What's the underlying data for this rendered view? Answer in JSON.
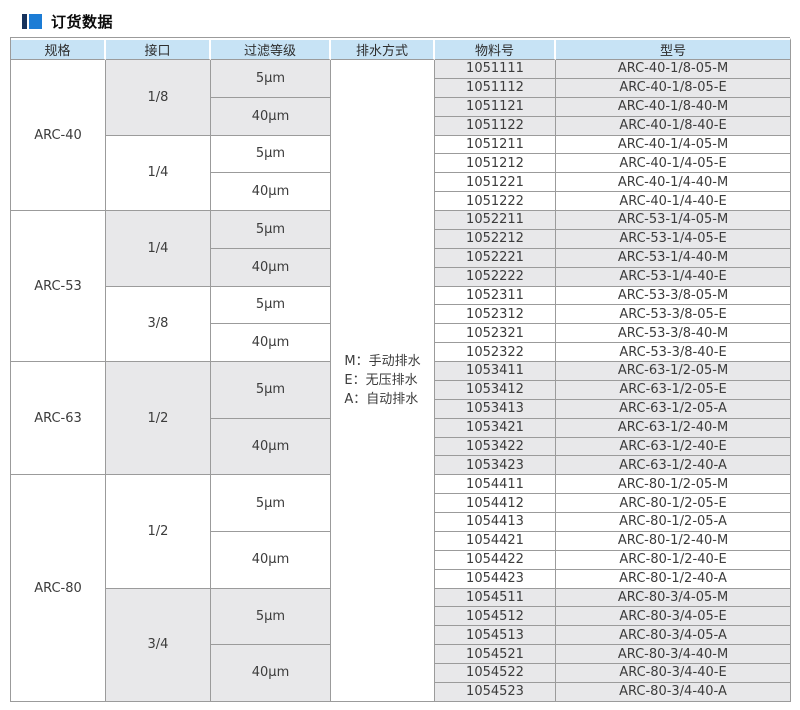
{
  "page": {
    "title": "订货数据"
  },
  "colors": {
    "header_bg": "#c7e3f5",
    "shade_bg": "#e8e8ea",
    "border": "#9b9b9b",
    "text": "#3c3c3c",
    "icon_dark": "#16325c",
    "icon_blue": "#1c7cd5"
  },
  "table": {
    "headers": [
      "规格",
      "接口",
      "过滤等级",
      "排水方式",
      "物料号",
      "型号"
    ],
    "drain_method": {
      "lines": [
        "M：手动排水",
        "E：无压排水",
        "A：自动排水"
      ]
    },
    "groups": [
      {
        "spec": "ARC-40",
        "ports": [
          {
            "port": "1/8",
            "shaded": true,
            "filters": [
              {
                "grade": "5μm",
                "items": [
                  {
                    "mat": "1051111",
                    "model": "ARC-40-1/8-05-M"
                  },
                  {
                    "mat": "1051112",
                    "model": "ARC-40-1/8-05-E"
                  }
                ]
              },
              {
                "grade": "40μm",
                "items": [
                  {
                    "mat": "1051121",
                    "model": "ARC-40-1/8-40-M"
                  },
                  {
                    "mat": "1051122",
                    "model": "ARC-40-1/8-40-E"
                  }
                ]
              }
            ]
          },
          {
            "port": "1/4",
            "shaded": false,
            "filters": [
              {
                "grade": "5μm",
                "items": [
                  {
                    "mat": "1051211",
                    "model": "ARC-40-1/4-05-M"
                  },
                  {
                    "mat": "1051212",
                    "model": "ARC-40-1/4-05-E"
                  }
                ]
              },
              {
                "grade": "40μm",
                "items": [
                  {
                    "mat": "1051221",
                    "model": "ARC-40-1/4-40-M"
                  },
                  {
                    "mat": "1051222",
                    "model": "ARC-40-1/4-40-E"
                  }
                ]
              }
            ]
          }
        ]
      },
      {
        "spec": "ARC-53",
        "ports": [
          {
            "port": "1/4",
            "shaded": true,
            "filters": [
              {
                "grade": "5μm",
                "items": [
                  {
                    "mat": "1052211",
                    "model": "ARC-53-1/4-05-M"
                  },
                  {
                    "mat": "1052212",
                    "model": "ARC-53-1/4-05-E"
                  }
                ]
              },
              {
                "grade": "40μm",
                "items": [
                  {
                    "mat": "1052221",
                    "model": "ARC-53-1/4-40-M"
                  },
                  {
                    "mat": "1052222",
                    "model": "ARC-53-1/4-40-E"
                  }
                ]
              }
            ]
          },
          {
            "port": "3/8",
            "shaded": false,
            "filters": [
              {
                "grade": "5μm",
                "items": [
                  {
                    "mat": "1052311",
                    "model": "ARC-53-3/8-05-M"
                  },
                  {
                    "mat": "1052312",
                    "model": "ARC-53-3/8-05-E"
                  }
                ]
              },
              {
                "grade": "40μm",
                "items": [
                  {
                    "mat": "1052321",
                    "model": "ARC-53-3/8-40-M"
                  },
                  {
                    "mat": "1052322",
                    "model": "ARC-53-3/8-40-E"
                  }
                ]
              }
            ]
          }
        ]
      },
      {
        "spec": "ARC-63",
        "ports": [
          {
            "port": "1/2",
            "shaded": true,
            "filters": [
              {
                "grade": "5μm",
                "items": [
                  {
                    "mat": "1053411",
                    "model": "ARC-63-1/2-05-M"
                  },
                  {
                    "mat": "1053412",
                    "model": "ARC-63-1/2-05-E"
                  },
                  {
                    "mat": "1053413",
                    "model": "ARC-63-1/2-05-A"
                  }
                ]
              },
              {
                "grade": "40μm",
                "items": [
                  {
                    "mat": "1053421",
                    "model": "ARC-63-1/2-40-M"
                  },
                  {
                    "mat": "1053422",
                    "model": "ARC-63-1/2-40-E"
                  },
                  {
                    "mat": "1053423",
                    "model": "ARC-63-1/2-40-A"
                  }
                ]
              }
            ]
          }
        ]
      },
      {
        "spec": "ARC-80",
        "ports": [
          {
            "port": "1/2",
            "shaded": false,
            "filters": [
              {
                "grade": "5μm",
                "items": [
                  {
                    "mat": "1054411",
                    "model": "ARC-80-1/2-05-M"
                  },
                  {
                    "mat": "1054412",
                    "model": "ARC-80-1/2-05-E"
                  },
                  {
                    "mat": "1054413",
                    "model": "ARC-80-1/2-05-A"
                  }
                ]
              },
              {
                "grade": "40μm",
                "items": [
                  {
                    "mat": "1054421",
                    "model": "ARC-80-1/2-40-M"
                  },
                  {
                    "mat": "1054422",
                    "model": "ARC-80-1/2-40-E"
                  },
                  {
                    "mat": "1054423",
                    "model": "ARC-80-1/2-40-A"
                  }
                ]
              }
            ]
          },
          {
            "port": "3/4",
            "shaded": true,
            "filters": [
              {
                "grade": "5μm",
                "items": [
                  {
                    "mat": "1054511",
                    "model": "ARC-80-3/4-05-M"
                  },
                  {
                    "mat": "1054512",
                    "model": "ARC-80-3/4-05-E"
                  },
                  {
                    "mat": "1054513",
                    "model": "ARC-80-3/4-05-A"
                  }
                ]
              },
              {
                "grade": "40μm",
                "items": [
                  {
                    "mat": "1054521",
                    "model": "ARC-80-3/4-40-M"
                  },
                  {
                    "mat": "1054522",
                    "model": "ARC-80-3/4-40-E"
                  },
                  {
                    "mat": "1054523",
                    "model": "ARC-80-3/4-40-A"
                  }
                ]
              }
            ]
          }
        ]
      }
    ]
  }
}
